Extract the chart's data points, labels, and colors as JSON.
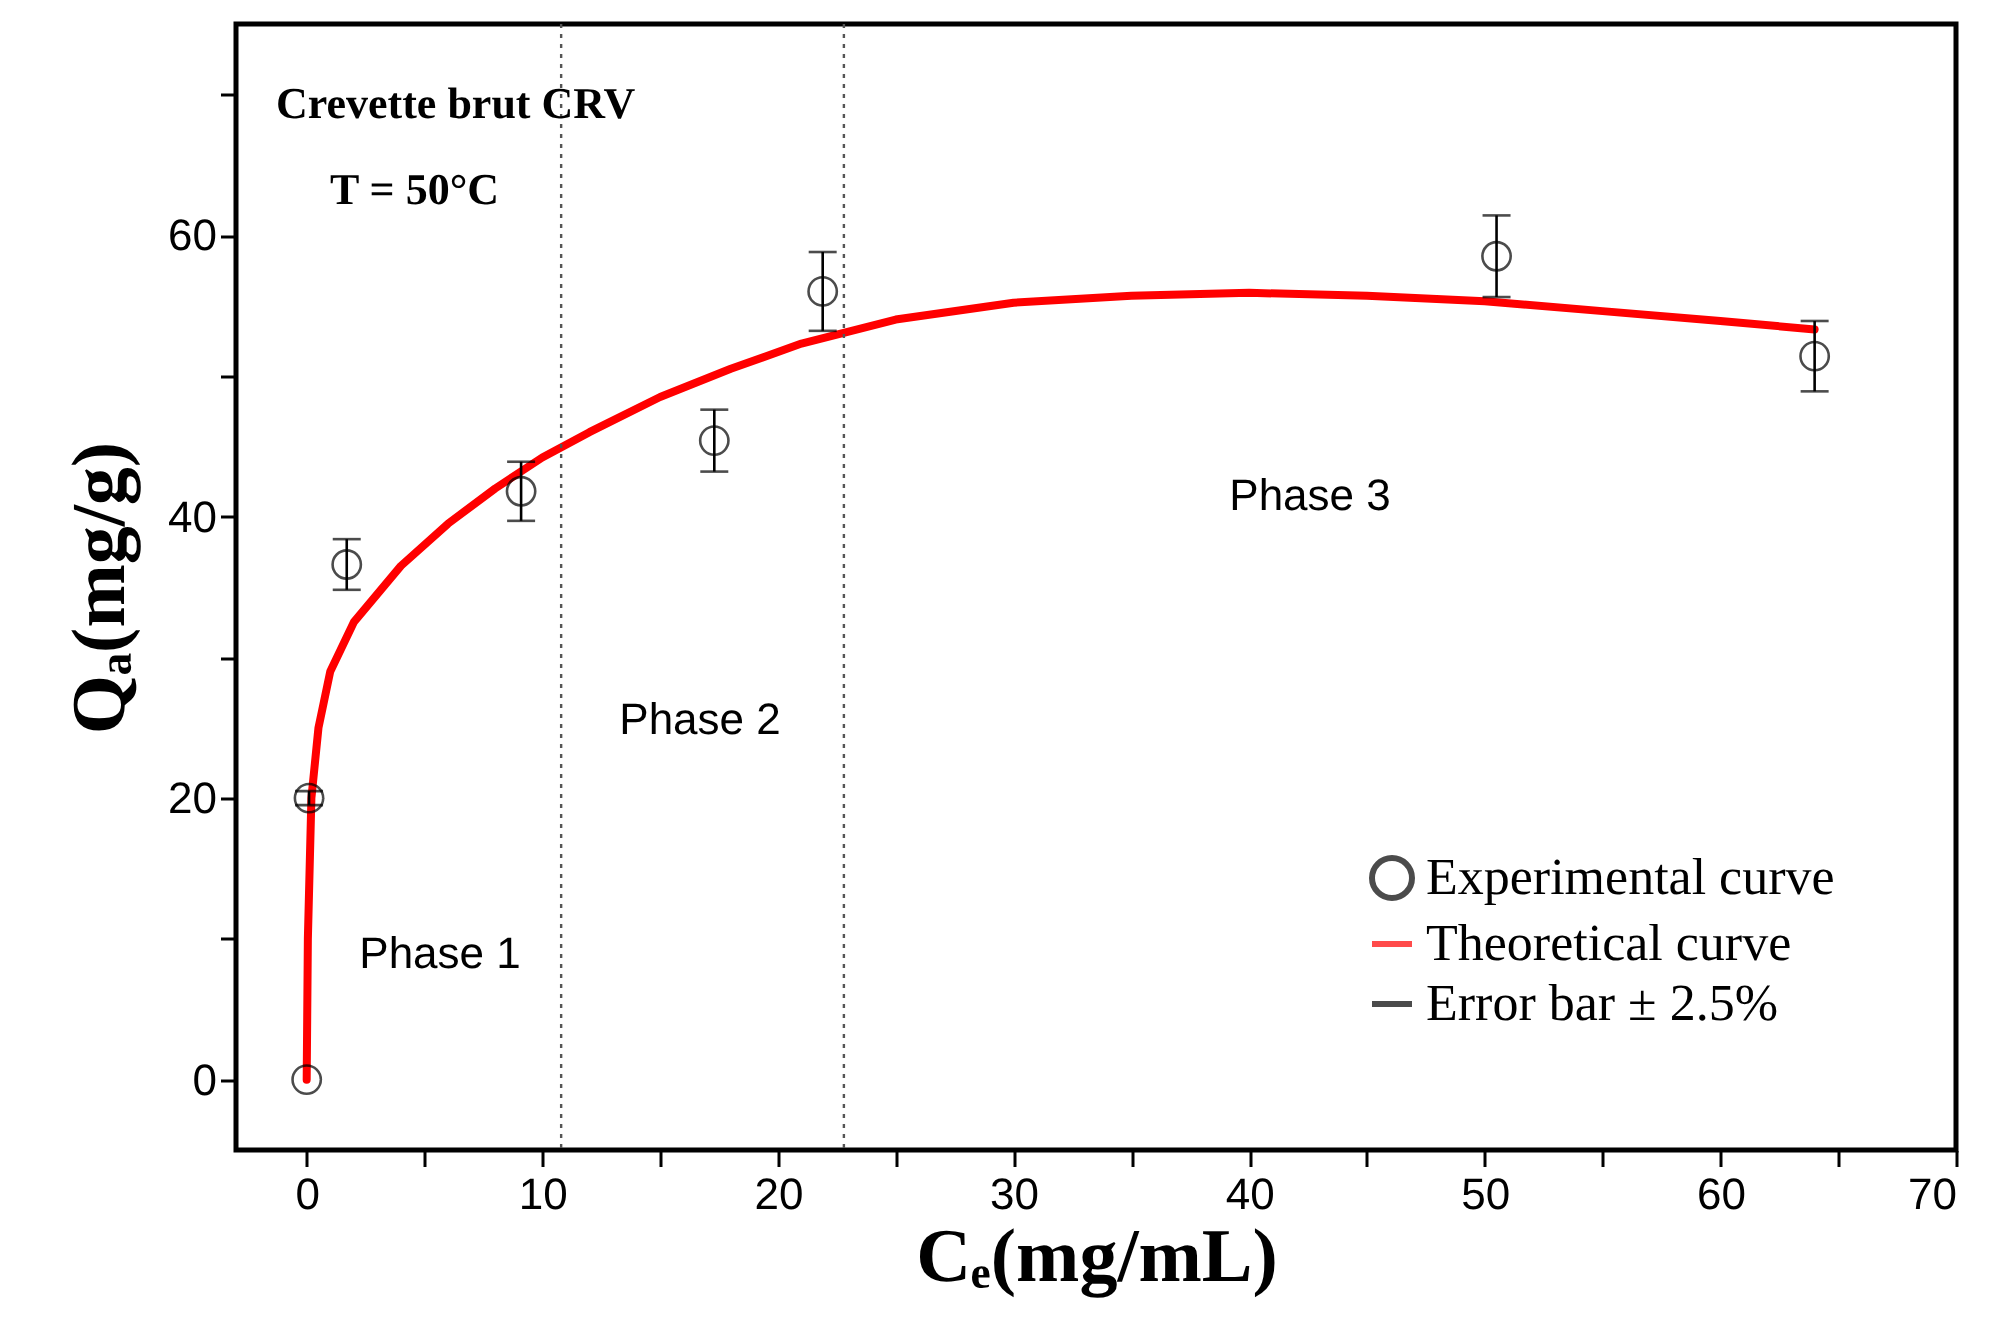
{
  "chart_data": {
    "type": "scatter",
    "xlabel": "Cₑ(mg/mL)",
    "ylabel": "Qₐ(mg/g)",
    "xlim": [
      -3,
      70
    ],
    "xticks": [
      0,
      {
        "value": 5,
        "label": null
      },
      10,
      {
        "value": 15,
        "label": null
      },
      20,
      {
        "value": 25,
        "label": null
      },
      30,
      {
        "value": 35,
        "label": null
      },
      40,
      {
        "value": 45,
        "label": null
      },
      50,
      {
        "value": 55,
        "label": null
      },
      60,
      {
        "value": 65,
        "label": null
      },
      70
    ],
    "ylim": [
      -5,
      75
    ],
    "yticks": [
      0,
      {
        "value": 10,
        "label": null
      },
      20,
      {
        "value": 30,
        "label": null
      },
      40,
      {
        "value": 50,
        "label": null
      },
      60,
      {
        "value": 70,
        "label": null
      }
    ],
    "legend": "bottom right",
    "series": [
      {
        "name": "Experimental curve",
        "color": "#000000",
        "marker": "circle",
        "x": [
          0,
          0.1,
          1.7,
          9.1,
          17.3,
          21.9,
          50.5,
          64.0
        ],
        "values": [
          0,
          20,
          36.6,
          41.8,
          45.4,
          56.0,
          58.5,
          51.4
        ],
        "errors": [
          null,
          0.5,
          1.8,
          2.1,
          2.2,
          2.8,
          2.9,
          2.5
        ]
      },
      {
        "name": "Theoretical curve",
        "type": "line",
        "color": "#ff0000",
        "line_style": "solid",
        "x": [
          0,
          0.05,
          0.2,
          0.5,
          1,
          2,
          4,
          6,
          8,
          10,
          12,
          15,
          18,
          21,
          25,
          30,
          35,
          40,
          45,
          50,
          55,
          60,
          64.0
        ],
        "values": [
          0,
          10,
          20,
          25,
          29,
          32.5,
          36.5,
          39.5,
          42,
          44.2,
          46,
          48.5,
          50.5,
          52.3,
          54,
          55.2,
          55.7,
          55.9,
          55.7,
          55.3,
          54.6,
          53.9,
          53.3
        ]
      }
    ],
    "ref_lines": [
      {
        "axis": "x",
        "value": 10.8,
        "line_style": "dotted",
        "color": "#555555"
      },
      {
        "axis": "x",
        "value": 22.8,
        "line_style": "dotted",
        "color": "#555555"
      }
    ],
    "annotations": [
      "Crevette brut  CRV",
      "T = 50°C",
      "Phase 1",
      "Phase 2",
      "Phase 3",
      "Error bar  ± 2.5%"
    ]
  }
}
